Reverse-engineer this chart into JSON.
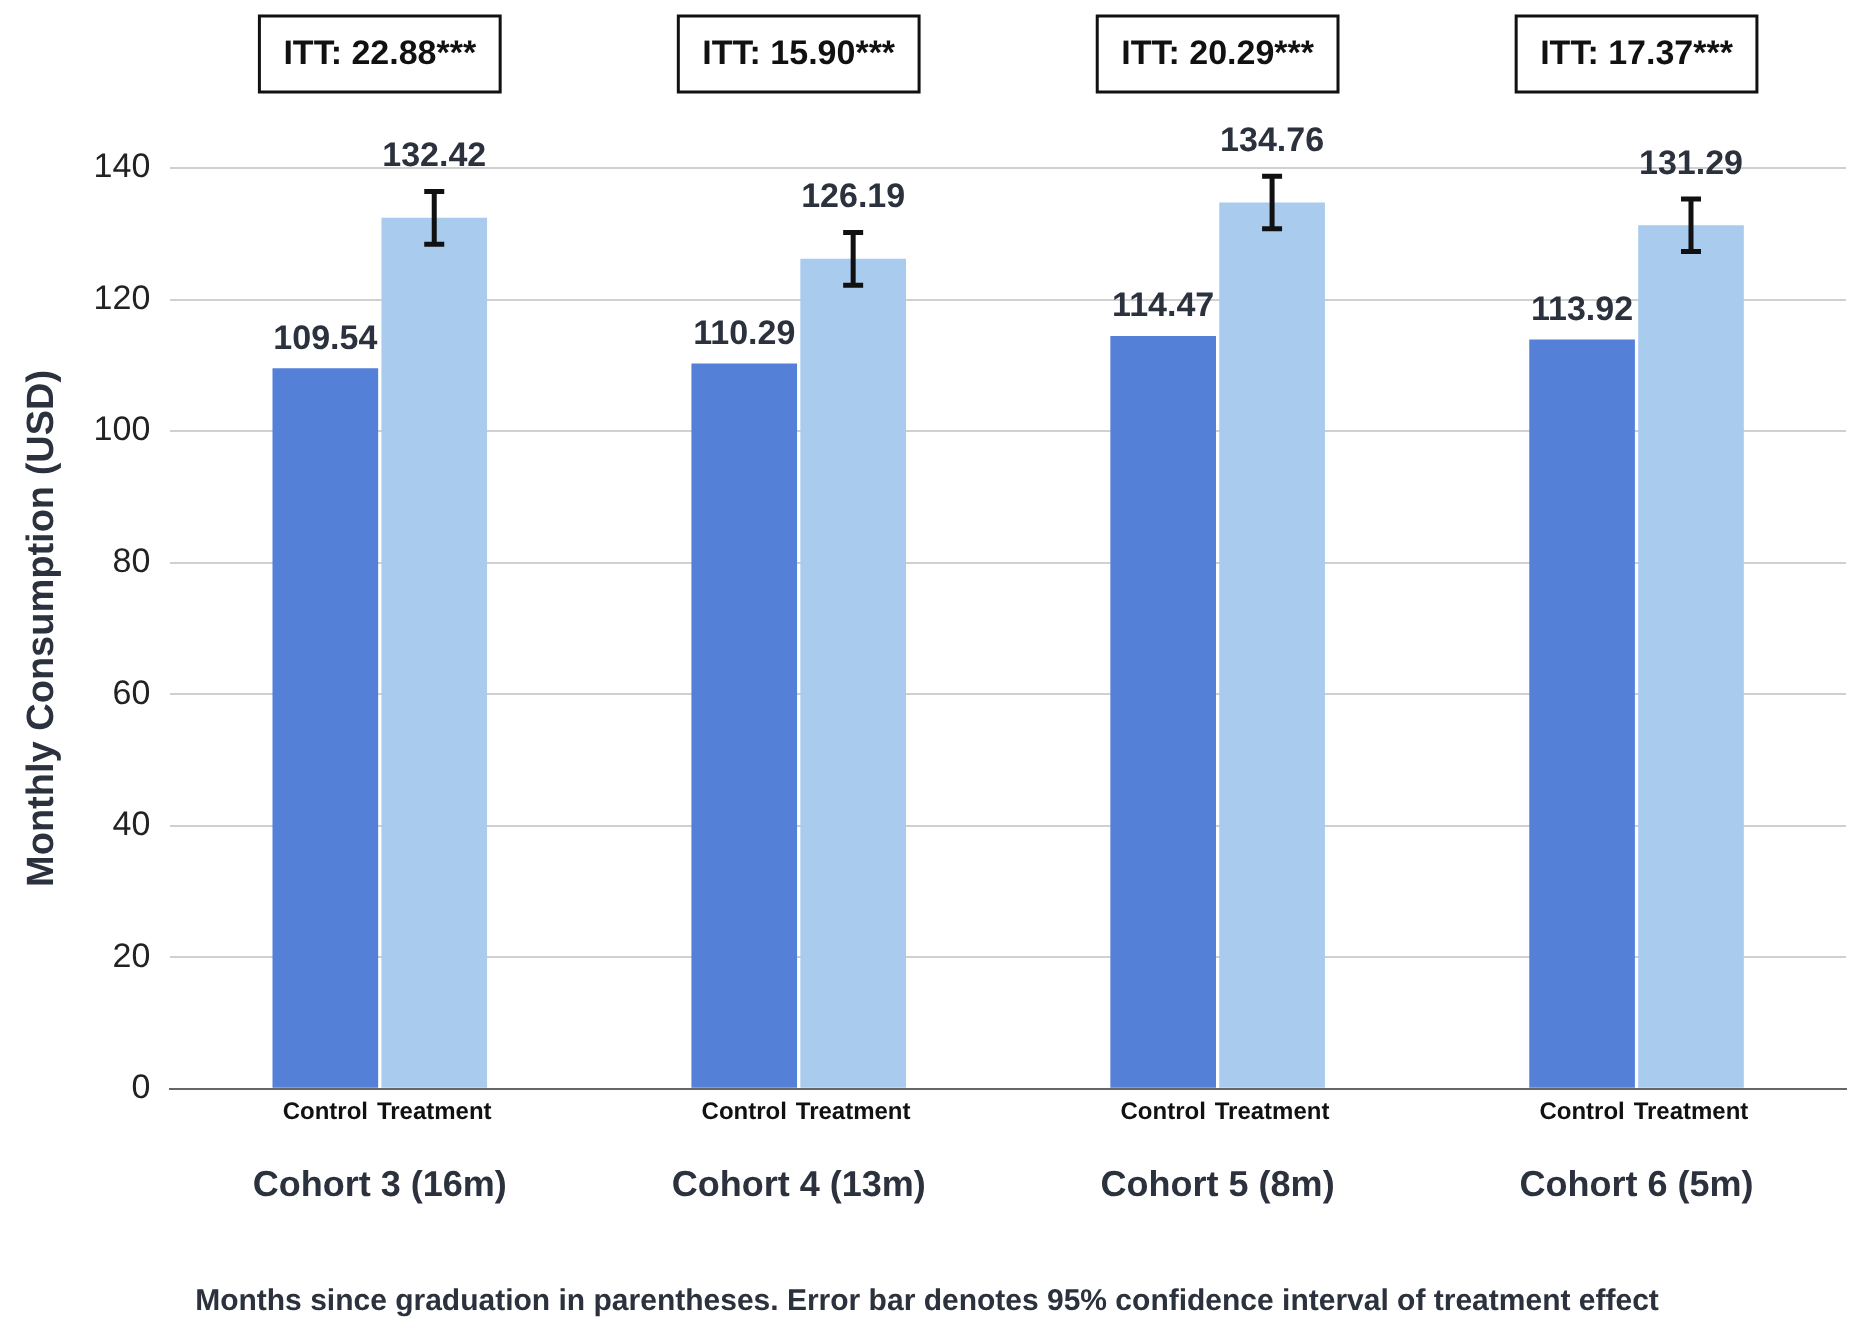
{
  "chart_data": {
    "type": "bar",
    "ylabel": "Monthly Consumption (USD)",
    "categories": [
      "Cohort 3 (16m)",
      "Cohort 4 (13m)",
      "Cohort 5 (8m)",
      "Cohort 6 (5m)"
    ],
    "series": [
      {
        "name": "Control",
        "color": "#5580d8",
        "values": [
          109.54,
          110.29,
          114.47,
          113.92
        ]
      },
      {
        "name": "Treatment",
        "color": "#a8cbee",
        "values": [
          132.42,
          126.19,
          134.76,
          131.29
        ],
        "errors": [
          4,
          4,
          4,
          4
        ]
      }
    ],
    "ylim": [
      0,
      140
    ],
    "yticks": [
      0,
      20,
      40,
      60,
      80,
      100,
      120,
      140
    ],
    "grid": "y",
    "data_labels": true,
    "legend": false,
    "annotations": [
      "ITT: 22.88***",
      "ITT: 15.90***",
      "ITT: 20.29***",
      "ITT: 17.37***",
      "Months since graduation in parentheses. Error bar denotes 95% confidence interval of treatment effect"
    ]
  }
}
